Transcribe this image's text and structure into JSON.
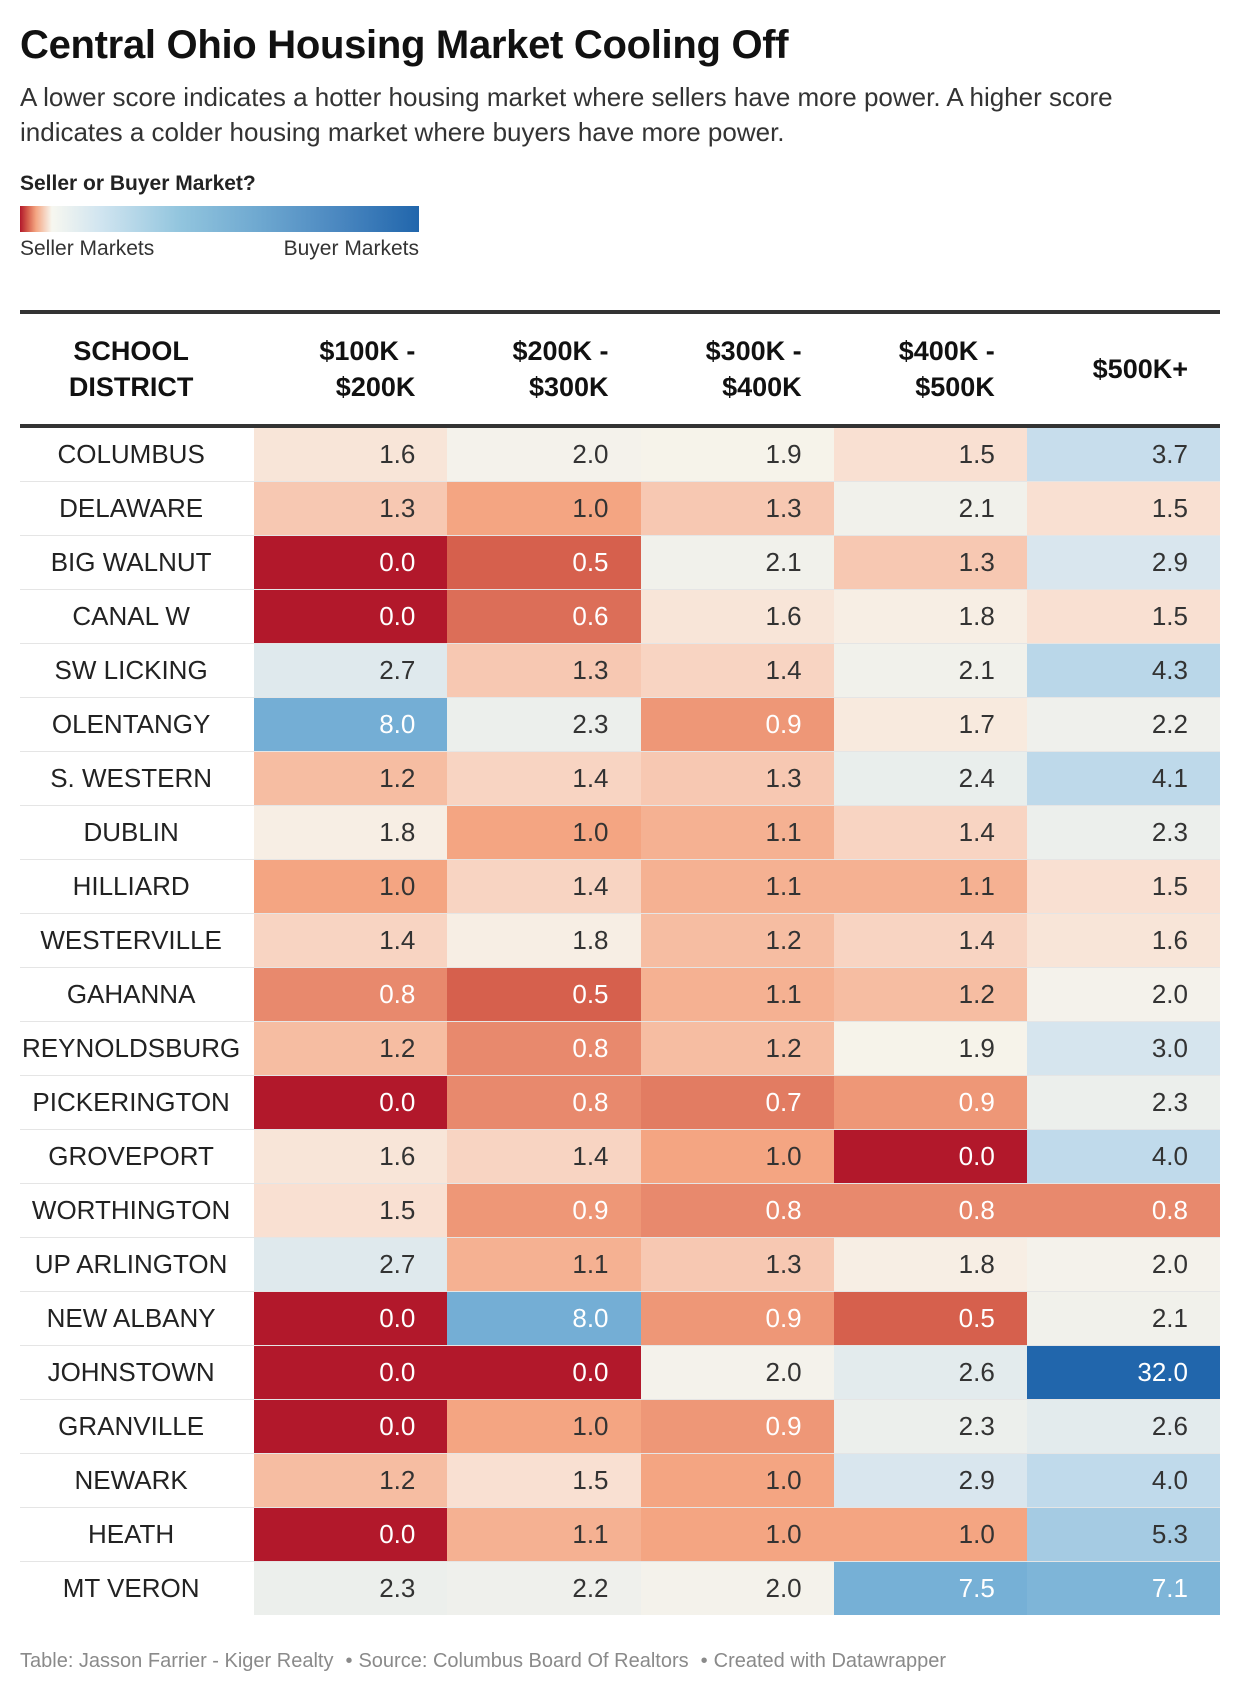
{
  "title": "Central Ohio Housing Market Cooling Off",
  "subtitle": "A lower score indicates a hotter housing market where sellers have more power. A higher score indicates a colder housing market where buyers have more power.",
  "legend": {
    "title": "Seller or Buyer Market?",
    "low_label": "Seller Markets",
    "high_label": "Buyer Markets"
  },
  "notes": {
    "table_credit": "Table: Jasson Farrier - Kiger Realty",
    "source": "Source: Columbus Board Of Realtors",
    "created": "Created with Datawrapper"
  },
  "colors": {
    "seller_strong": "#b2182b",
    "neutral": "#f7f7f0",
    "buyer_strong": "#2166ac"
  },
  "chart_data": {
    "type": "heatmap",
    "title": "Central Ohio Housing Market Cooling Off",
    "columns": [
      "School District",
      "$100k - $200k",
      "$200k - $300k",
      "$300k - $400k",
      "$400k - $500k",
      "$500k+"
    ],
    "rows": [
      {
        "district": "COLUMBUS",
        "values": [
          1.6,
          2.0,
          1.9,
          1.5,
          3.7
        ]
      },
      {
        "district": "DELAWARE",
        "values": [
          1.3,
          1.0,
          1.3,
          2.1,
          1.5
        ]
      },
      {
        "district": "BIG WALNUT",
        "values": [
          0.0,
          0.5,
          2.1,
          1.3,
          2.9
        ]
      },
      {
        "district": "CANAL W",
        "values": [
          0.0,
          0.6,
          1.6,
          1.8,
          1.5
        ]
      },
      {
        "district": "SW LICKING",
        "values": [
          2.7,
          1.3,
          1.4,
          2.1,
          4.3
        ]
      },
      {
        "district": "OLENTANGY",
        "values": [
          8.0,
          2.3,
          0.9,
          1.7,
          2.2
        ]
      },
      {
        "district": "S. WESTERN",
        "values": [
          1.2,
          1.4,
          1.3,
          2.4,
          4.1
        ]
      },
      {
        "district": "DUBLIN",
        "values": [
          1.8,
          1.0,
          1.1,
          1.4,
          2.3
        ]
      },
      {
        "district": "HILLIARD",
        "values": [
          1.0,
          1.4,
          1.1,
          1.1,
          1.5
        ]
      },
      {
        "district": "WESTERVILLE",
        "values": [
          1.4,
          1.8,
          1.2,
          1.4,
          1.6
        ]
      },
      {
        "district": "GAHANNA",
        "values": [
          0.8,
          0.5,
          1.1,
          1.2,
          2.0
        ]
      },
      {
        "district": "REYNOLDSBURG",
        "values": [
          1.2,
          0.8,
          1.2,
          1.9,
          3.0
        ]
      },
      {
        "district": "PICKERINGTON",
        "values": [
          0.0,
          0.8,
          0.7,
          0.9,
          2.3
        ]
      },
      {
        "district": "GROVEPORT",
        "values": [
          1.6,
          1.4,
          1.0,
          0.0,
          4.0
        ]
      },
      {
        "district": "WORTHINGTON",
        "values": [
          1.5,
          0.9,
          0.8,
          0.8,
          0.8
        ]
      },
      {
        "district": "UP ARLINGTON",
        "values": [
          2.7,
          1.1,
          1.3,
          1.8,
          2.0
        ]
      },
      {
        "district": "NEW ALBANY",
        "values": [
          0.0,
          8.0,
          0.9,
          0.5,
          2.1
        ]
      },
      {
        "district": "JOHNSTOWN",
        "values": [
          0.0,
          0.0,
          2.0,
          2.6,
          32.0
        ]
      },
      {
        "district": "GRANVILLE",
        "values": [
          0.0,
          1.0,
          0.9,
          2.3,
          2.6
        ]
      },
      {
        "district": "NEWARK",
        "values": [
          1.2,
          1.5,
          1.0,
          2.9,
          4.0
        ]
      },
      {
        "district": "HEATH",
        "values": [
          0.0,
          1.1,
          1.0,
          1.0,
          5.3
        ]
      },
      {
        "district": "MT VERON",
        "values": [
          2.3,
          2.2,
          2.0,
          7.5,
          7.1
        ]
      }
    ]
  }
}
